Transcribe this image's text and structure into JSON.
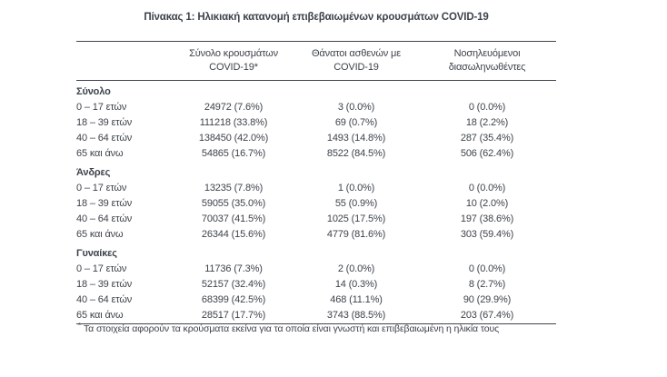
{
  "title": "Πίνακας 1: Ηλικιακή κατανομή επιβεβαιωμένων κρουσμάτων COVID-19",
  "table": {
    "header": {
      "cols": [
        {
          "line1": "Σύνολο κρουσμάτων",
          "line2": "COVID-19*"
        },
        {
          "line1": "Θάνατοι ασθενών με",
          "line2": "COVID-19"
        },
        {
          "line1": "Νοσηλευόμενοι",
          "line2": "διασωληνωθέντες"
        }
      ]
    },
    "sections": [
      {
        "label": "Σύνολο",
        "rows": [
          {
            "label": "0 – 17 ετών",
            "cells": [
              "24972 (7.6%)",
              "3 (0.0%)",
              "0 (0.0%)"
            ]
          },
          {
            "label": "18 – 39 ετών",
            "cells": [
              "111218 (33.8%)",
              "69 (0.7%)",
              "18 (2.2%)"
            ]
          },
          {
            "label": "40 – 64 ετών",
            "cells": [
              "138450 (42.0%)",
              "1493 (14.8%)",
              "287 (35.4%)"
            ]
          },
          {
            "label": "65 και άνω",
            "cells": [
              "54865 (16.7%)",
              "8522 (84.5%)",
              "506 (62.4%)"
            ]
          }
        ]
      },
      {
        "label": "Άνδρες",
        "rows": [
          {
            "label": "0 – 17 ετών",
            "cells": [
              "13235 (7.8%)",
              "1 (0.0%)",
              "0 (0.0%)"
            ]
          },
          {
            "label": "18 – 39 ετών",
            "cells": [
              "59055 (35.0%)",
              "55 (0.9%)",
              "10 (2.0%)"
            ]
          },
          {
            "label": "40 – 64 ετών",
            "cells": [
              "70037 (41.5%)",
              "1025 (17.5%)",
              "197 (38.6%)"
            ]
          },
          {
            "label": "65 και άνω",
            "cells": [
              "26344 (15.6%)",
              "4779 (81.6%)",
              "303 (59.4%)"
            ]
          }
        ]
      },
      {
        "label": "Γυναίκες",
        "rows": [
          {
            "label": "0 – 17 ετών",
            "cells": [
              "11736 (7.3%)",
              "2 (0.0%)",
              "0 (0.0%)"
            ]
          },
          {
            "label": "18 – 39 ετών",
            "cells": [
              "52157 (32.4%)",
              "14 (0.3%)",
              "8 (2.7%)"
            ]
          },
          {
            "label": "40 – 64 ετών",
            "cells": [
              "68399 (42.5%)",
              "468 (11.1%)",
              "90 (29.9%)"
            ]
          },
          {
            "label": "65 και άνω",
            "cells": [
              "28517 (17.7%)",
              "3743 (88.5%)",
              "203 (67.4%)"
            ]
          }
        ]
      }
    ]
  },
  "footnote": {
    "marker": "*",
    "text": "Τα στοιχεία αφορούν τα κρούσματα εκείνα για τα οποία είναι γνωστή και επιβεβαιωμένη η ηλικία τους"
  },
  "colors": {
    "text": "#3d434b",
    "rule": "#3f454d",
    "background": "#ffffff"
  }
}
